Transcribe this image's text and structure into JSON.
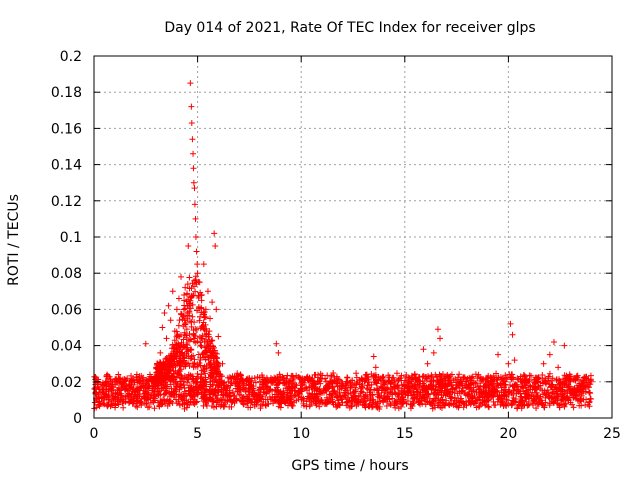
{
  "chart_data": {
    "type": "scatter",
    "title": "Day 014 of 2021, Rate Of TEC Index for receiver glps",
    "xlabel": "GPS time / hours",
    "ylabel": "ROTI / TECUs",
    "xlim": [
      0,
      25
    ],
    "ylim": [
      0,
      0.2
    ],
    "xticks": [
      0,
      5,
      10,
      15,
      20,
      25
    ],
    "yticks": [
      0,
      0.02,
      0.04,
      0.06,
      0.08,
      0.1,
      0.12,
      0.14,
      0.16,
      0.18,
      0.2
    ],
    "grid": true,
    "marker": "plus",
    "color": "#ff0000",
    "series": [
      {
        "name": "ROTI",
        "points": [
          [
            0.1,
            0.022
          ],
          [
            0.3,
            0.014
          ],
          [
            0.6,
            0.018
          ],
          [
            0.9,
            0.012
          ],
          [
            1.2,
            0.02
          ],
          [
            1.5,
            0.016
          ],
          [
            1.8,
            0.021
          ],
          [
            2.1,
            0.013
          ],
          [
            2.4,
            0.019
          ],
          [
            2.5,
            0.041
          ],
          [
            2.7,
            0.024
          ],
          [
            3.0,
            0.028
          ],
          [
            3.2,
            0.036
          ],
          [
            3.3,
            0.05
          ],
          [
            3.4,
            0.058
          ],
          [
            3.5,
            0.044
          ],
          [
            3.6,
            0.062
          ],
          [
            3.7,
            0.054
          ],
          [
            3.8,
            0.07
          ],
          [
            3.9,
            0.048
          ],
          [
            4.0,
            0.06
          ],
          [
            4.1,
            0.066
          ],
          [
            4.2,
            0.078
          ],
          [
            4.3,
            0.056
          ],
          [
            4.4,
            0.072
          ],
          [
            4.5,
            0.062
          ],
          [
            4.55,
            0.095
          ],
          [
            4.6,
            0.058
          ],
          [
            4.65,
            0.185
          ],
          [
            4.7,
            0.172
          ],
          [
            4.72,
            0.163
          ],
          [
            4.75,
            0.154
          ],
          [
            4.78,
            0.146
          ],
          [
            4.8,
            0.138
          ],
          [
            4.82,
            0.13
          ],
          [
            4.85,
            0.127
          ],
          [
            4.87,
            0.118
          ],
          [
            4.9,
            0.11
          ],
          [
            4.92,
            0.1
          ],
          [
            4.95,
            0.092
          ],
          [
            4.98,
            0.085
          ],
          [
            5.0,
            0.08
          ],
          [
            5.1,
            0.075
          ],
          [
            5.2,
            0.068
          ],
          [
            5.3,
            0.085
          ],
          [
            5.4,
            0.06
          ],
          [
            5.5,
            0.07
          ],
          [
            5.6,
            0.055
          ],
          [
            5.7,
            0.064
          ],
          [
            5.8,
            0.102
          ],
          [
            5.85,
            0.095
          ],
          [
            5.9,
            0.06
          ],
          [
            6.0,
            0.045
          ],
          [
            6.2,
            0.03
          ],
          [
            6.5,
            0.02
          ],
          [
            7.0,
            0.018
          ],
          [
            7.5,
            0.022
          ],
          [
            8.0,
            0.017
          ],
          [
            8.5,
            0.021
          ],
          [
            8.8,
            0.041
          ],
          [
            8.9,
            0.036
          ],
          [
            9.2,
            0.019
          ],
          [
            9.6,
            0.023
          ],
          [
            10.0,
            0.018
          ],
          [
            10.4,
            0.022
          ],
          [
            10.8,
            0.016
          ],
          [
            11.2,
            0.02
          ],
          [
            11.6,
            0.015
          ],
          [
            12.0,
            0.019
          ],
          [
            12.4,
            0.017
          ],
          [
            12.8,
            0.021
          ],
          [
            13.2,
            0.018
          ],
          [
            13.5,
            0.034
          ],
          [
            13.6,
            0.028
          ],
          [
            14.0,
            0.02
          ],
          [
            14.4,
            0.016
          ],
          [
            14.8,
            0.022
          ],
          [
            15.2,
            0.017
          ],
          [
            15.6,
            0.021
          ],
          [
            15.9,
            0.038
          ],
          [
            16.1,
            0.03
          ],
          [
            16.4,
            0.036
          ],
          [
            16.6,
            0.049
          ],
          [
            16.7,
            0.044
          ],
          [
            16.9,
            0.022
          ],
          [
            17.3,
            0.016
          ],
          [
            17.7,
            0.02
          ],
          [
            18.1,
            0.018
          ],
          [
            18.5,
            0.022
          ],
          [
            18.9,
            0.017
          ],
          [
            19.3,
            0.021
          ],
          [
            19.5,
            0.035
          ],
          [
            19.7,
            0.019
          ],
          [
            20.0,
            0.03
          ],
          [
            20.1,
            0.052
          ],
          [
            20.2,
            0.046
          ],
          [
            20.3,
            0.032
          ],
          [
            20.6,
            0.02
          ],
          [
            21.0,
            0.018
          ],
          [
            21.4,
            0.022
          ],
          [
            21.7,
            0.03
          ],
          [
            22.0,
            0.035
          ],
          [
            22.2,
            0.042
          ],
          [
            22.4,
            0.028
          ],
          [
            22.7,
            0.04
          ],
          [
            23.0,
            0.02
          ],
          [
            23.4,
            0.018
          ],
          [
            23.7,
            0.022
          ],
          [
            24.0,
            0.02
          ]
        ]
      }
    ],
    "bands": [
      {
        "x_start": 0.0,
        "x_end": 24.0,
        "y_low": 0.003,
        "y_high": 0.027
      }
    ]
  }
}
